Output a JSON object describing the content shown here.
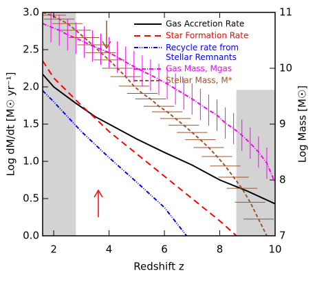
{
  "chart_data": {
    "type": "line",
    "xlabel": "Redshift z",
    "ylabel": "Log dM/dt [M☉ yr⁻¹]",
    "y2label": "Log Mass [M☉]",
    "xlim": [
      1.6,
      10
    ],
    "xticks": [
      2,
      4,
      6,
      8,
      10
    ],
    "ylim": [
      0,
      3
    ],
    "yticks": [
      {
        "value": 0,
        "label": "0.0"
      },
      0.5,
      {
        "value": 1,
        "label": "1.0"
      },
      1.5,
      {
        "value": 2,
        "label": "2.0"
      },
      2.5,
      {
        "value": 3,
        "label": "3.0"
      }
    ],
    "y2lim": [
      7,
      11
    ],
    "y2ticks": [
      7,
      8,
      9,
      10,
      11
    ],
    "shaded_regions": [
      {
        "xlim": [
          1.6,
          2.8
        ],
        "ylim": [
          0,
          3
        ]
      },
      {
        "xlim": [
          8.6,
          10
        ],
        "ylim": [
          0,
          1.96
        ]
      }
    ],
    "legend": "upper right",
    "series": [
      {
        "name": "Gas Accretion Rate",
        "color": "#000000",
        "dash": "none",
        "x": [
          1.6,
          2,
          2.8,
          3.5,
          4,
          5,
          6,
          7,
          8,
          9,
          10
        ],
        "values": [
          2.17,
          2.0,
          1.78,
          1.6,
          1.5,
          1.3,
          1.12,
          0.95,
          0.75,
          0.6,
          0.43
        ]
      },
      {
        "name": "Star Formation Rate",
        "color": "#ff0000",
        "dash": "9,6",
        "x": [
          1.6,
          2,
          3,
          3.5,
          4,
          5,
          6,
          7,
          8,
          8.6
        ],
        "values": [
          2.35,
          2.12,
          1.75,
          1.58,
          1.4,
          1.1,
          0.8,
          0.5,
          0.2,
          0.0
        ]
      },
      {
        "name": "Recycle rate from Stellar Remnants",
        "color": "#0000ff",
        "dash": "6,2,1,2,1,2",
        "x": [
          1.6,
          2,
          3,
          4,
          5,
          6,
          6.8
        ],
        "values": [
          1.95,
          1.8,
          1.4,
          1.05,
          0.72,
          0.38,
          0.0
        ]
      },
      {
        "name": "Gas Mass, Mgas",
        "color": "#ff00ff",
        "dash": "6,2,1,2",
        "axis": "y2",
        "yerr": 0.28,
        "x": [
          1.6,
          1.9,
          2.2,
          2.5,
          2.8,
          3.1,
          3.4,
          3.7,
          4.0,
          4.3,
          4.6,
          4.9,
          5.2,
          5.5,
          5.8,
          6.1,
          6.4,
          6.7,
          7.0,
          7.3,
          7.6,
          7.9,
          8.2,
          8.5,
          8.8,
          9.1,
          9.4,
          9.7,
          10.0
        ],
        "values": [
          10.8,
          10.74,
          10.68,
          10.6,
          10.54,
          10.47,
          10.4,
          10.34,
          10.28,
          10.2,
          10.11,
          10.03,
          9.95,
          9.88,
          9.8,
          9.72,
          9.63,
          9.54,
          9.45,
          9.35,
          9.25,
          9.16,
          9.02,
          8.92,
          8.8,
          8.66,
          8.5,
          8.3,
          7.95
        ]
      },
      {
        "name": "Stellar Mass, M*",
        "color": "#a0522d",
        "dash": "5,3",
        "axis": "y2",
        "xerr": 0.55,
        "x": [
          1.6,
          1.9,
          2.2,
          2.5,
          2.8,
          3.1,
          3.4,
          3.7,
          4.0,
          4.3,
          4.6,
          4.9,
          5.2,
          5.5,
          5.8,
          6.1,
          6.4,
          6.7,
          7.0,
          7.3,
          7.6,
          7.9,
          8.2,
          8.5,
          8.8,
          9.1,
          9.4,
          9.7
        ],
        "values": [
          11.0,
          10.95,
          10.88,
          10.8,
          10.68,
          10.55,
          10.42,
          10.28,
          10.15,
          10.0,
          9.85,
          9.68,
          9.55,
          9.45,
          9.32,
          9.22,
          9.1,
          8.98,
          8.85,
          8.72,
          8.58,
          8.42,
          8.25,
          8.05,
          7.85,
          7.6,
          7.3,
          7.0
        ]
      }
    ]
  }
}
